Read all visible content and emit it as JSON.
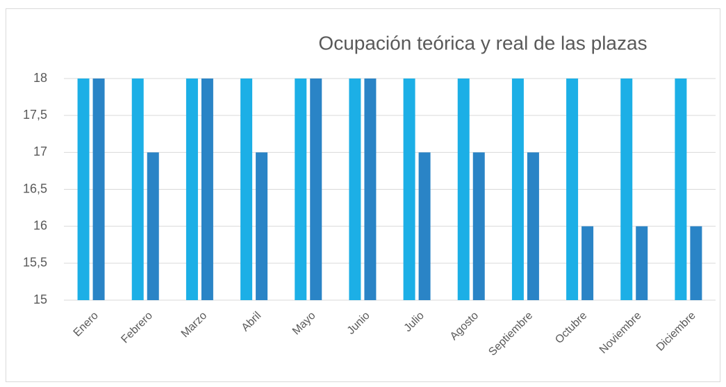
{
  "chart_data": {
    "type": "bar",
    "title": "Ocupación teórica y real de las plazas",
    "categories": [
      "Enero",
      "Febrero",
      "Marzo",
      "Abril",
      "Mayo",
      "Junio",
      "Julio",
      "Agosto",
      "Septiembre",
      "Octubre",
      "Noviembre",
      "Diciembre"
    ],
    "series": [
      {
        "color": "#1cafe6",
        "values": [
          18,
          18,
          18,
          18,
          18,
          18,
          18,
          18,
          18,
          18,
          18,
          18
        ]
      },
      {
        "color": "#2a84c6",
        "values": [
          18,
          17,
          18,
          17,
          18,
          18,
          17,
          17,
          17,
          16,
          16,
          16
        ]
      }
    ],
    "ylim": [
      15,
      18
    ],
    "yticks": [
      15,
      {
        "value": 15.5,
        "label": "15,5"
      },
      16,
      {
        "value": 16.5,
        "label": "16,5"
      },
      17,
      {
        "value": 17.5,
        "label": "17,5"
      },
      18
    ],
    "grid": true
  }
}
